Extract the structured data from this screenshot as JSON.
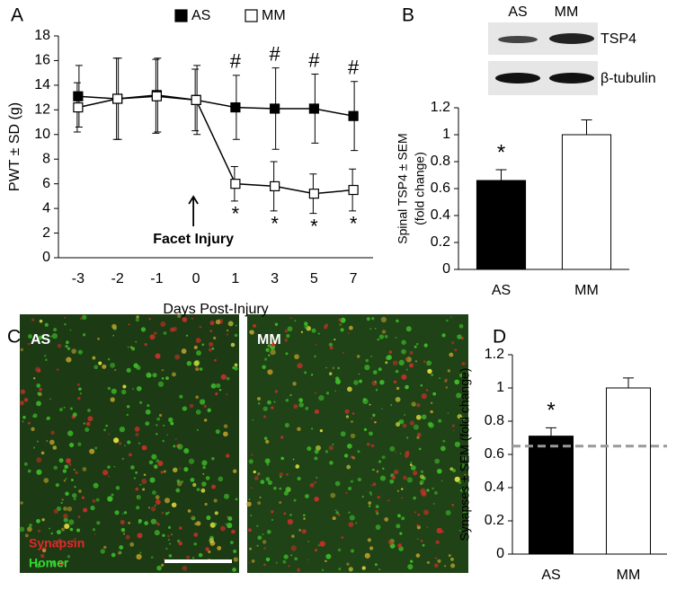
{
  "figure": {
    "panels": [
      "A",
      "B",
      "C",
      "D"
    ],
    "blot": {
      "columns": [
        "AS",
        "MM"
      ],
      "rows": [
        "TSP4",
        "β-tubulin"
      ]
    },
    "micrographs": [
      "AS",
      "MM"
    ],
    "stain_labels": [
      {
        "text": "Synapsin",
        "color": "#e8262a"
      },
      {
        "text": "Homer",
        "color": "#2edc2e"
      }
    ]
  },
  "chart_data": [
    {
      "type": "line",
      "x_label": "Days Post-Injury",
      "y_label": "PWT ± SD (g)",
      "categories": [
        "-3",
        "-2",
        "-1",
        "0",
        "1",
        "3",
        "5",
        "7"
      ],
      "series": [
        {
          "name": "AS",
          "color": "#000000",
          "marker_fill": "#000000",
          "values": [
            13.1,
            12.9,
            13.2,
            12.8,
            12.2,
            12.1,
            12.1,
            11.5
          ],
          "errors": [
            2.5,
            3.3,
            3.0,
            2.8,
            2.6,
            3.3,
            2.8,
            2.8
          ]
        },
        {
          "name": "MM",
          "color": "#000000",
          "marker_fill": "#ffffff",
          "values": [
            12.2,
            12.9,
            13.1,
            12.8,
            6.0,
            5.8,
            5.2,
            5.5
          ],
          "errors": [
            2.0,
            3.3,
            3.0,
            2.5,
            1.4,
            2.0,
            1.6,
            1.7
          ]
        }
      ],
      "ylim": [
        0,
        18
      ],
      "yticks": [
        0,
        2,
        4,
        6,
        8,
        10,
        12,
        14,
        16,
        18
      ],
      "annotations": [
        {
          "text": "#",
          "x": "1",
          "series": "AS"
        },
        {
          "text": "#",
          "x": "3",
          "series": "AS"
        },
        {
          "text": "#",
          "x": "5",
          "series": "AS"
        },
        {
          "text": "#",
          "x": "7",
          "series": "AS"
        },
        {
          "text": "*",
          "x": "1",
          "series": "MM"
        },
        {
          "text": "*",
          "x": "3",
          "series": "MM"
        },
        {
          "text": "*",
          "x": "5",
          "series": "MM"
        },
        {
          "text": "*",
          "x": "7",
          "series": "MM"
        }
      ],
      "arrow": {
        "text": "Facet Injury",
        "x": "0"
      }
    },
    {
      "type": "bar",
      "y_label": [
        "Spinal TSP4 ± SEM",
        "(fold change)"
      ],
      "categories": [
        "AS",
        "MM"
      ],
      "values": [
        0.66,
        1.0
      ],
      "errors": [
        0.08,
        0.11
      ],
      "colors": [
        "#000000",
        "#ffffff"
      ],
      "ylim": [
        0,
        1.2
      ],
      "yticks": [
        0,
        0.2,
        0.4,
        0.6,
        0.8,
        1,
        1.2
      ],
      "annotations": [
        {
          "text": "*",
          "x": "AS"
        }
      ]
    },
    {
      "type": "bar",
      "y_label": [
        "Synapses ± SEM (fold change)"
      ],
      "categories": [
        "AS",
        "MM"
      ],
      "values": [
        0.71,
        1.0
      ],
      "errors": [
        0.05,
        0.06
      ],
      "colors": [
        "#000000",
        "#ffffff"
      ],
      "ylim": [
        0,
        1.2
      ],
      "yticks": [
        0,
        0.2,
        0.4,
        0.6,
        0.8,
        1,
        1.2
      ],
      "annotations": [
        {
          "text": "*",
          "x": "AS"
        }
      ],
      "reference_line": {
        "value": 0.65,
        "color": "#999999"
      }
    }
  ]
}
